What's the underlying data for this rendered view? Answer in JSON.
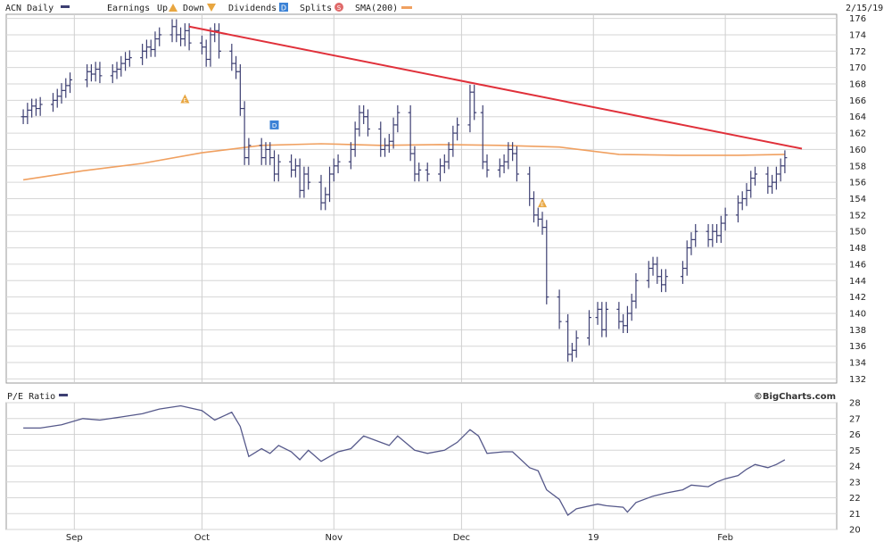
{
  "header": {
    "ticker_label": "ACN Daily",
    "legend_earnings": "Earnings",
    "legend_up": "Up",
    "legend_down": "Down",
    "legend_dividends": "Dividends",
    "legend_splits": "Splits",
    "legend_sma": "SMA(200)",
    "date": "2/15/19"
  },
  "lower_panel": {
    "title": "P/E Ratio"
  },
  "brand": "©BigCharts.com",
  "colors": {
    "price_bars": "#3d3f72",
    "sma": "#f0a060",
    "trendline": "#e0303a",
    "pe_line": "#55588a",
    "earnings_marker": "#e8a640",
    "dividend_marker": "#3b82d6",
    "split_marker": "#e06a6a"
  },
  "chart_data": [
    {
      "type": "line",
      "title": "ACN Daily",
      "chart_style": "ohlc-bars",
      "xlabel": "",
      "ylabel": "",
      "x_ticks": [
        "Sep",
        "Oct",
        "Nov",
        "Dec",
        "19",
        "Feb"
      ],
      "y_ticks": [
        132,
        134,
        136,
        138,
        140,
        142,
        144,
        146,
        148,
        150,
        152,
        154,
        156,
        158,
        160,
        162,
        164,
        166,
        168,
        170,
        172,
        174,
        176
      ],
      "ylim": [
        131.5,
        176.5
      ],
      "x_start": "2018-08-20",
      "x_end": "2019-02-15",
      "grid": true,
      "legend_placement": "top",
      "series": [
        {
          "name": "ACN Daily",
          "style": "ohlc",
          "points": [
            [
              "2018-08-20",
              164.0
            ],
            [
              "2018-08-21",
              164.8
            ],
            [
              "2018-08-22",
              165.3
            ],
            [
              "2018-08-23",
              165.0
            ],
            [
              "2018-08-24",
              165.5
            ],
            [
              "2018-08-27",
              166.0
            ],
            [
              "2018-08-28",
              166.5
            ],
            [
              "2018-08-29",
              167.2
            ],
            [
              "2018-08-30",
              167.8
            ],
            [
              "2018-08-31",
              168.5
            ],
            [
              "2018-09-04",
              169.5
            ],
            [
              "2018-09-05",
              169.2
            ],
            [
              "2018-09-06",
              169.8
            ],
            [
              "2018-09-07",
              169.0
            ],
            [
              "2018-09-10",
              169.5
            ],
            [
              "2018-09-11",
              169.8
            ],
            [
              "2018-09-12",
              170.5
            ],
            [
              "2018-09-13",
              171.0
            ],
            [
              "2018-09-14",
              171.2
            ],
            [
              "2018-09-17",
              172.0
            ],
            [
              "2018-09-18",
              172.5
            ],
            [
              "2018-09-19",
              172.2
            ],
            [
              "2018-09-20",
              173.5
            ],
            [
              "2018-09-21",
              174.0
            ],
            [
              "2018-09-24",
              175.0
            ],
            [
              "2018-09-25",
              174.0
            ],
            [
              "2018-09-26",
              173.5
            ],
            [
              "2018-09-27",
              174.5
            ],
            [
              "2018-09-28",
              173.0
            ],
            [
              "2018-10-01",
              172.5
            ],
            [
              "2018-10-02",
              171.0
            ],
            [
              "2018-10-03",
              174.0
            ],
            [
              "2018-10-04",
              174.5
            ],
            [
              "2018-10-05",
              172.0
            ],
            [
              "2018-10-08",
              170.5
            ],
            [
              "2018-10-09",
              169.5
            ],
            [
              "2018-10-10",
              165.0
            ],
            [
              "2018-10-11",
              159.0
            ],
            [
              "2018-10-12",
              160.5
            ],
            [
              "2018-10-15",
              159.0
            ],
            [
              "2018-10-16",
              160.0
            ],
            [
              "2018-10-17",
              159.0
            ],
            [
              "2018-10-18",
              157.0
            ],
            [
              "2018-10-19",
              158.5
            ],
            [
              "2018-10-22",
              157.5
            ],
            [
              "2018-10-23",
              158.0
            ],
            [
              "2018-10-24",
              155.0
            ],
            [
              "2018-10-25",
              157.0
            ],
            [
              "2018-10-26",
              156.0
            ],
            [
              "2018-10-29",
              153.5
            ],
            [
              "2018-10-30",
              154.5
            ],
            [
              "2018-10-31",
              157.0
            ],
            [
              "2018-11-01",
              158.0
            ],
            [
              "2018-11-02",
              158.5
            ],
            [
              "2018-11-05",
              160.0
            ],
            [
              "2018-11-06",
              162.5
            ],
            [
              "2018-11-07",
              164.5
            ],
            [
              "2018-11-08",
              164.0
            ],
            [
              "2018-11-09",
              162.5
            ],
            [
              "2018-11-12",
              160.0
            ],
            [
              "2018-11-13",
              160.5
            ],
            [
              "2018-11-14",
              161.0
            ],
            [
              "2018-11-15",
              163.0
            ],
            [
              "2018-11-16",
              164.5
            ],
            [
              "2018-11-19",
              159.5
            ],
            [
              "2018-11-20",
              157.0
            ],
            [
              "2018-11-21",
              157.5
            ],
            [
              "2018-11-23",
              157.0
            ],
            [
              "2018-11-26",
              158.0
            ],
            [
              "2018-11-27",
              158.5
            ],
            [
              "2018-11-28",
              160.0
            ],
            [
              "2018-11-29",
              162.0
            ],
            [
              "2018-11-30",
              163.0
            ],
            [
              "2018-12-03",
              167.0
            ],
            [
              "2018-12-04",
              164.5
            ],
            [
              "2018-12-06",
              158.5
            ],
            [
              "2018-12-07",
              157.5
            ],
            [
              "2018-12-10",
              158.0
            ],
            [
              "2018-12-11",
              158.5
            ],
            [
              "2018-12-12",
              160.0
            ],
            [
              "2018-12-13",
              159.5
            ],
            [
              "2018-12-14",
              157.0
            ],
            [
              "2018-12-17",
              154.0
            ],
            [
              "2018-12-18",
              152.0
            ],
            [
              "2018-12-19",
              151.5
            ],
            [
              "2018-12-20",
              150.5
            ],
            [
              "2018-12-21",
              142.0
            ],
            [
              "2018-12-24",
              139.0
            ],
            [
              "2018-12-26",
              135.0
            ],
            [
              "2018-12-27",
              135.5
            ],
            [
              "2018-12-28",
              137.0
            ],
            [
              "2018-12-31",
              139.5
            ],
            [
              "2019-01-02",
              140.5
            ],
            [
              "2019-01-03",
              138.0
            ],
            [
              "2019-01-04",
              140.5
            ],
            [
              "2019-01-07",
              139.0
            ],
            [
              "2019-01-08",
              138.5
            ],
            [
              "2019-01-09",
              140.0
            ],
            [
              "2019-01-10",
              141.5
            ],
            [
              "2019-01-11",
              144.0
            ],
            [
              "2019-01-14",
              145.5
            ],
            [
              "2019-01-15",
              146.0
            ],
            [
              "2019-01-16",
              144.5
            ],
            [
              "2019-01-17",
              143.5
            ],
            [
              "2019-01-18",
              144.5
            ],
            [
              "2019-01-22",
              145.5
            ],
            [
              "2019-01-23",
              148.0
            ],
            [
              "2019-01-24",
              149.0
            ],
            [
              "2019-01-25",
              150.0
            ],
            [
              "2019-01-28",
              149.0
            ],
            [
              "2019-01-29",
              150.0
            ],
            [
              "2019-01-30",
              149.5
            ],
            [
              "2019-01-31",
              151.0
            ],
            [
              "2019-02-01",
              152.0
            ],
            [
              "2019-02-04",
              153.5
            ],
            [
              "2019-02-05",
              154.0
            ],
            [
              "2019-02-06",
              155.0
            ],
            [
              "2019-02-07",
              156.5
            ],
            [
              "2019-02-08",
              157.0
            ],
            [
              "2019-02-11",
              155.5
            ],
            [
              "2019-02-12",
              156.0
            ],
            [
              "2019-02-13",
              157.0
            ],
            [
              "2019-02-14",
              158.0
            ],
            [
              "2019-02-15",
              159.0
            ]
          ]
        },
        {
          "name": "SMA(200)",
          "style": "line",
          "points": [
            [
              "2018-08-20",
              156.3
            ],
            [
              "2018-09-03",
              157.4
            ],
            [
              "2018-09-17",
              158.3
            ],
            [
              "2018-10-01",
              159.6
            ],
            [
              "2018-10-15",
              160.5
            ],
            [
              "2018-10-29",
              160.7
            ],
            [
              "2018-11-12",
              160.5
            ],
            [
              "2018-11-26",
              160.6
            ],
            [
              "2018-12-10",
              160.5
            ],
            [
              "2018-12-24",
              160.3
            ],
            [
              "2019-01-07",
              159.4
            ],
            [
              "2019-01-21",
              159.3
            ],
            [
              "2019-02-04",
              159.3
            ],
            [
              "2019-02-15",
              159.4
            ]
          ]
        },
        {
          "name": "trendline",
          "style": "line",
          "points": [
            [
              "2018-09-28",
              175.0
            ],
            [
              "2019-02-19",
              160.1
            ]
          ]
        }
      ],
      "events": [
        {
          "type": "earnings",
          "direction": "down",
          "date": "2018-09-27",
          "label": "E",
          "value": 166.2
        },
        {
          "type": "dividend",
          "date": "2018-10-18",
          "label": "D",
          "value": 163.0
        },
        {
          "type": "earnings",
          "direction": "down",
          "date": "2018-12-20",
          "label": "E",
          "value": 153.5
        }
      ]
    },
    {
      "type": "line",
      "title": "P/E Ratio",
      "xlabel": "",
      "ylabel": "",
      "x_ticks": [
        "Sep",
        "Oct",
        "Nov",
        "Dec",
        "19",
        "Feb"
      ],
      "y_ticks": [
        20,
        21,
        22,
        23,
        24,
        25,
        26,
        27,
        28
      ],
      "ylim": [
        20,
        28
      ],
      "grid": true,
      "series": [
        {
          "name": "P/E Ratio",
          "points": [
            [
              "2018-08-20",
              26.4
            ],
            [
              "2018-08-24",
              26.4
            ],
            [
              "2018-08-29",
              26.6
            ],
            [
              "2018-09-03",
              27.0
            ],
            [
              "2018-09-07",
              26.9
            ],
            [
              "2018-09-12",
              27.1
            ],
            [
              "2018-09-17",
              27.3
            ],
            [
              "2018-09-21",
              27.6
            ],
            [
              "2018-09-26",
              27.8
            ],
            [
              "2018-10-01",
              27.5
            ],
            [
              "2018-10-04",
              26.9
            ],
            [
              "2018-10-08",
              27.4
            ],
            [
              "2018-10-10",
              26.5
            ],
            [
              "2018-10-12",
              24.6
            ],
            [
              "2018-10-15",
              25.1
            ],
            [
              "2018-10-17",
              24.8
            ],
            [
              "2018-10-19",
              25.3
            ],
            [
              "2018-10-22",
              24.9
            ],
            [
              "2018-10-24",
              24.4
            ],
            [
              "2018-10-26",
              25.0
            ],
            [
              "2018-10-29",
              24.3
            ],
            [
              "2018-10-31",
              24.6
            ],
            [
              "2018-11-02",
              24.9
            ],
            [
              "2018-11-05",
              25.1
            ],
            [
              "2018-11-08",
              25.9
            ],
            [
              "2018-11-12",
              25.5
            ],
            [
              "2018-11-14",
              25.3
            ],
            [
              "2018-11-16",
              25.9
            ],
            [
              "2018-11-20",
              25.0
            ],
            [
              "2018-11-23",
              24.8
            ],
            [
              "2018-11-27",
              25.0
            ],
            [
              "2018-11-30",
              25.5
            ],
            [
              "2018-12-03",
              26.3
            ],
            [
              "2018-12-05",
              25.9
            ],
            [
              "2018-12-07",
              24.8
            ],
            [
              "2018-12-11",
              24.9
            ],
            [
              "2018-12-13",
              24.9
            ],
            [
              "2018-12-17",
              23.9
            ],
            [
              "2018-12-19",
              23.7
            ],
            [
              "2018-12-21",
              22.5
            ],
            [
              "2018-12-24",
              21.9
            ],
            [
              "2018-12-26",
              20.9
            ],
            [
              "2018-12-28",
              21.3
            ],
            [
              "2019-01-02",
              21.6
            ],
            [
              "2019-01-04",
              21.5
            ],
            [
              "2019-01-08",
              21.4
            ],
            [
              "2019-01-09",
              21.1
            ],
            [
              "2019-01-11",
              21.7
            ],
            [
              "2019-01-15",
              22.1
            ],
            [
              "2019-01-18",
              22.3
            ],
            [
              "2019-01-22",
              22.5
            ],
            [
              "2019-01-24",
              22.8
            ],
            [
              "2019-01-28",
              22.7
            ],
            [
              "2019-01-30",
              23.0
            ],
            [
              "2019-02-01",
              23.2
            ],
            [
              "2019-02-04",
              23.4
            ],
            [
              "2019-02-06",
              23.8
            ],
            [
              "2019-02-08",
              24.1
            ],
            [
              "2019-02-11",
              23.9
            ],
            [
              "2019-02-13",
              24.1
            ],
            [
              "2019-02-15",
              24.4
            ]
          ]
        }
      ]
    }
  ]
}
